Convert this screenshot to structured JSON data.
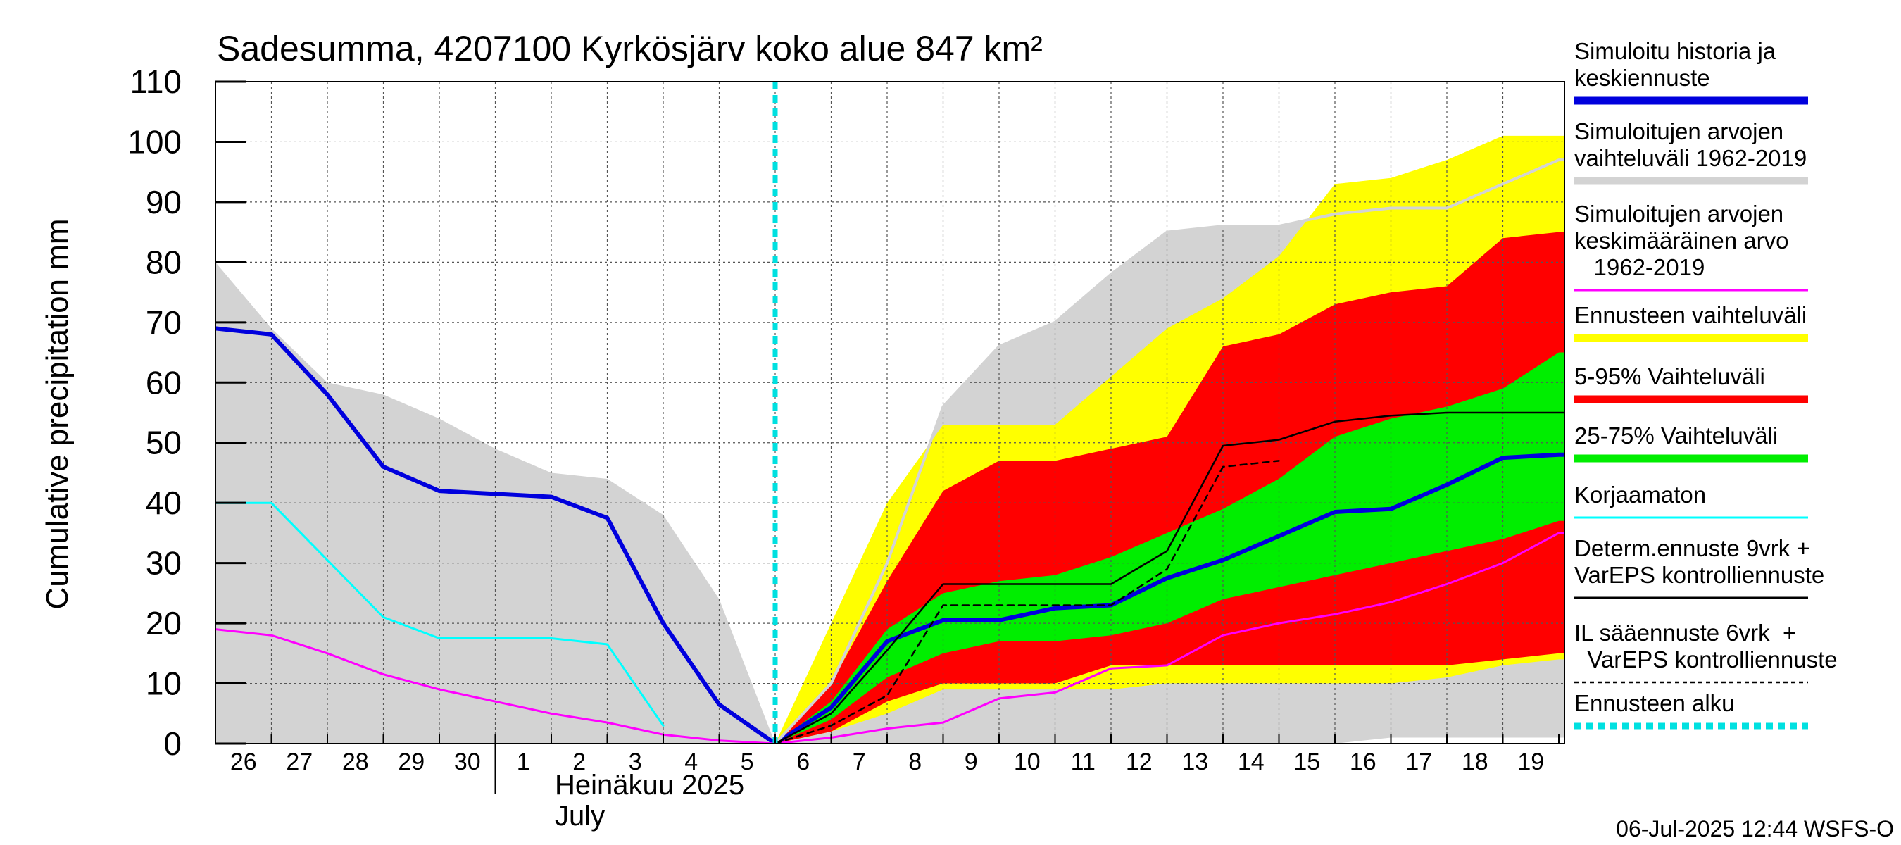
{
  "chart_data": {
    "type": "area",
    "title": "Sadesumma, 4207100 Kyrkösjärv koko alue 847 km²",
    "ylabel": "Cumulative precipitation   mm",
    "ylim": [
      0,
      110
    ],
    "yticks": [
      0,
      10,
      20,
      30,
      40,
      50,
      60,
      70,
      80,
      90,
      100,
      110
    ],
    "xlim": [
      0,
      24.5
    ],
    "x_tick_labels": [
      "26",
      "27",
      "28",
      "29",
      "30",
      "1",
      "2",
      "3",
      "4",
      "5",
      "6",
      "7",
      "8",
      "9",
      "10",
      "11",
      "12",
      "13",
      "14",
      "15",
      "16",
      "17",
      "18",
      "19"
    ],
    "month_label_fi": "Heinäkuu  2025",
    "month_label_en": "July",
    "forecast_start_x": 10,
    "timestamp": "06-Jul-2025 12:44 WSFS-O",
    "grid": true,
    "bands": [
      {
        "name": "Simuloitujen arvojen vaihteluväli 1962-2019",
        "color": "#d3d3d3",
        "x": [
          0,
          1,
          2,
          3,
          4,
          5,
          6,
          7,
          8,
          9,
          10,
          11,
          12,
          13,
          14,
          15,
          16,
          17,
          18,
          19,
          20,
          21,
          22,
          23,
          24,
          24.5
        ],
        "upper": [
          80,
          69,
          60,
          58,
          54,
          49,
          45,
          44,
          38,
          24,
          0,
          10,
          30,
          56,
          66,
          70,
          78,
          85,
          86,
          86,
          88,
          89,
          89,
          93,
          97,
          97
        ],
        "lower": [
          0,
          0,
          0,
          0,
          0,
          0,
          0,
          0,
          0,
          0,
          0,
          0,
          0,
          0,
          0,
          0,
          0,
          0,
          0,
          0,
          0,
          1,
          1,
          1,
          1,
          1
        ]
      },
      {
        "name": "Ennusteen vaihteluväli",
        "color": "#ffff00",
        "x": [
          10,
          11,
          12,
          13,
          14,
          15,
          16,
          17,
          18,
          19,
          20,
          21,
          22,
          23,
          24,
          24.5
        ],
        "upper": [
          0,
          20,
          40,
          53,
          53,
          53,
          61,
          69,
          74,
          81,
          93,
          94,
          97,
          101,
          101,
          101
        ],
        "lower": [
          0,
          2,
          5,
          9,
          9,
          9,
          9,
          10,
          10,
          10,
          10,
          10,
          11,
          13,
          14,
          14
        ]
      },
      {
        "name": "5-95% Vaihteluväli",
        "color": "#ff0000",
        "x": [
          10,
          11,
          12,
          13,
          14,
          15,
          16,
          17,
          18,
          19,
          20,
          21,
          22,
          23,
          24,
          24.5
        ],
        "upper": [
          0,
          10,
          27,
          42,
          47,
          47,
          49,
          51,
          66,
          68,
          73,
          75,
          76,
          84,
          85,
          85
        ],
        "lower": [
          0,
          2,
          7,
          10,
          10,
          10,
          13,
          13,
          13,
          13,
          13,
          13,
          13,
          14,
          15,
          15
        ]
      },
      {
        "name": "25-75% Vaihteluväli",
        "color": "#00ee00",
        "x": [
          10,
          11,
          12,
          13,
          14,
          15,
          16,
          17,
          18,
          19,
          20,
          21,
          22,
          23,
          24,
          24.5
        ],
        "upper": [
          0,
          7,
          19,
          25,
          27,
          28,
          31,
          35,
          39,
          44,
          51,
          54,
          56,
          59,
          65,
          65
        ],
        "lower": [
          0,
          4,
          11,
          15,
          17,
          17,
          18,
          20,
          24,
          26,
          28,
          30,
          32,
          34,
          37,
          37
        ]
      }
    ],
    "series": [
      {
        "name": "Simuloitu historia ja keskiennuste",
        "color": "#0000dd",
        "width": 6,
        "dash": "",
        "x": [
          0,
          1,
          2,
          3,
          4,
          5,
          6,
          7,
          8,
          9,
          10,
          11,
          12,
          13,
          14,
          15,
          16,
          17,
          18,
          19,
          20,
          21,
          22,
          23,
          24,
          24.5
        ],
        "y": [
          69,
          68,
          58,
          46,
          42,
          41.5,
          41,
          37.5,
          20,
          6.5,
          0,
          6,
          17,
          20.5,
          20.5,
          22.5,
          23,
          27.5,
          30.5,
          34.5,
          38.5,
          39,
          43,
          47.5,
          48,
          48
        ]
      },
      {
        "name": "Korjaamaton",
        "color": "#00ffff",
        "width": 3,
        "dash": "",
        "x": [
          0,
          1,
          2,
          3,
          4,
          5,
          6,
          7,
          8
        ],
        "y": [
          40,
          40,
          30.5,
          21,
          17.5,
          17.5,
          17.5,
          16.5,
          3
        ]
      },
      {
        "name": "Simuloitujen arvojen keskimääräinen arvo 1962-2019",
        "color": "#ff00ff",
        "width": 3,
        "dash": "",
        "x": [
          0,
          1,
          2,
          3,
          4,
          5,
          6,
          7,
          8,
          9,
          10,
          11,
          12,
          13,
          14,
          15,
          16,
          17,
          18,
          19,
          20,
          21,
          22,
          23,
          24,
          24.5
        ],
        "y": [
          19,
          18,
          15,
          11.5,
          9,
          7,
          5,
          3.5,
          1.5,
          0.5,
          0,
          1,
          2.5,
          3.5,
          7.5,
          8.5,
          12.5,
          13,
          18,
          20,
          21.5,
          23.5,
          26.5,
          30,
          35,
          35
        ]
      },
      {
        "name": "Simuloitujen arvojen vaihteluväli 1962-2019",
        "color": "#d3d3d3",
        "width": 4,
        "dash": "",
        "x": [
          10,
          11,
          12,
          13,
          14,
          15,
          16,
          17,
          18,
          19,
          20,
          21,
          22,
          23,
          24,
          24.5
        ],
        "y": [
          0,
          10,
          30,
          56,
          66,
          70,
          78,
          85,
          86,
          86,
          88,
          89,
          89,
          93,
          97,
          97
        ]
      },
      {
        "name": "Determ.ennuste 9vrk + VarEPS kontrolliennuste",
        "color": "#000000",
        "width": 2.5,
        "dash": "",
        "x": [
          10,
          11,
          12,
          13,
          14,
          15,
          16,
          17,
          18,
          19,
          20,
          21,
          22,
          23,
          24,
          24.5
        ],
        "y": [
          0,
          5,
          15.5,
          26.5,
          26.5,
          26.5,
          26.5,
          32,
          49.5,
          50.5,
          53.5,
          54.5,
          55,
          55,
          55,
          55
        ]
      },
      {
        "name": "IL sääennuste 6vrk + VarEPS kontrolliennuste",
        "color": "#000000",
        "width": 2.5,
        "dash": "9,7",
        "x": [
          10,
          11,
          12,
          13,
          14,
          15,
          16,
          17,
          18,
          19
        ],
        "y": [
          0,
          3,
          8,
          23,
          23,
          23,
          23,
          29,
          46,
          47
        ]
      }
    ],
    "legend": [
      {
        "label_lines": [
          "Simuloitu historia ja",
          "keskiennuste"
        ],
        "color": "#0000dd",
        "style": "thick"
      },
      {
        "label_lines": [
          "Simuloitujen arvojen",
          "vaihteluväli 1962-2019"
        ],
        "color": "#d3d3d3",
        "style": "thick"
      },
      {
        "label_lines": [
          "Simuloitujen arvojen",
          "keskimääräinen arvo",
          "   1962-2019"
        ],
        "color": "#ff00ff",
        "style": "thin"
      },
      {
        "label_lines": [
          "Ennusteen vaihteluväli"
        ],
        "color": "#ffff00",
        "style": "thick"
      },
      {
        "label_lines": [
          "5-95% Vaihteluväli"
        ],
        "color": "#ff0000",
        "style": "thick"
      },
      {
        "label_lines": [
          "25-75% Vaihteluväli"
        ],
        "color": "#00ee00",
        "style": "thick"
      },
      {
        "label_lines": [
          "Korjaamaton"
        ],
        "color": "#00ffff",
        "style": "thin"
      },
      {
        "label_lines": [
          "Determ.ennuste 9vrk +",
          "VarEPS kontrolliennuste"
        ],
        "color": "#000000",
        "style": "thin"
      },
      {
        "label_lines": [
          "IL sääennuste 6vrk  +",
          "  VarEPS kontrolliennuste"
        ],
        "color": "#000000",
        "style": "dashed"
      },
      {
        "label_lines": [
          "Ennusteen alku"
        ],
        "color": "#00e0e0",
        "style": "dotted"
      }
    ]
  }
}
